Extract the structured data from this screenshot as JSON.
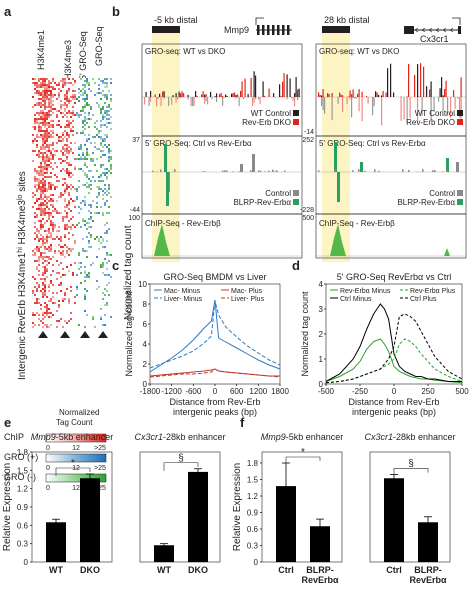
{
  "panel_letters": [
    "a",
    "b",
    "c",
    "d",
    "e",
    "f"
  ],
  "heatmap": {
    "columns": [
      "H3K4me1",
      "H3K4me3",
      "5' GRO-Seq",
      "GRO-Seq"
    ],
    "side_label": "Intergenic RevErb H3K4me1",
    "side_label_hi": "hi",
    "side_label_mid": " H3K4me3",
    "side_label_lo": "lo",
    "side_label_end": " sites",
    "scale_title": "Normalized Tag Count",
    "scale_rows": [
      {
        "name": "ChIP",
        "ticks": [
          "0",
          "12",
          ">25"
        ],
        "colors": [
          "#ffffff",
          "#f4a9a2",
          "#e2231a"
        ]
      },
      {
        "name": "GRO (+)",
        "ticks": [
          "0",
          "12",
          ">25"
        ],
        "colors": [
          "#ffffff",
          "#7fb3d8",
          "#1b6fb5"
        ]
      },
      {
        "name": "GRO (-)",
        "ticks": [
          "0",
          "12",
          ">25"
        ],
        "colors": [
          "#ffffff",
          "#8fd08f",
          "#2aa02a"
        ]
      }
    ]
  },
  "browser": {
    "ylabel": "Normalized tag count",
    "left": {
      "distal": "-5 kb distal",
      "gene": "Mmp9",
      "track1": {
        "title": "GRO-seq: WT vs DKO",
        "ymax": "",
        "ymin": "",
        "legend": [
          "WT Control",
          "Rev-Erb DKO"
        ],
        "legend_colors": [
          "#231f20",
          "#e2231a"
        ]
      },
      "track2": {
        "title": "5' GRO-Seq: Ctrl vs Rev-Erbα",
        "ymax": "37",
        "ymin": "-44",
        "legend": [
          "Control",
          "BLRP-Rev-Erbα"
        ],
        "legend_colors": [
          "#8a8a8a",
          "#2aa060"
        ]
      },
      "track3": {
        "title": "ChIP-Seq - Rev-Erbβ",
        "ymax": "100",
        "ymin": ""
      }
    },
    "right": {
      "distal": "28 kb distal",
      "gene": "Cx3cr1",
      "track1": {
        "title": "GRO-seq: WT vs DKO",
        "ymax": "",
        "ymin": "-14",
        "legend": [
          "WT Control",
          "Rev-Erb DKO"
        ],
        "legend_colors": [
          "#231f20",
          "#e2231a"
        ]
      },
      "track2": {
        "title": "5' GRO-Seq: Ctrl vs Rev-Erbα",
        "ymax": "252",
        "ymin": "-228",
        "legend": [
          "Control",
          "BLRP-Rev-Erbα"
        ],
        "legend_colors": [
          "#8a8a8a",
          "#2aa060"
        ]
      },
      "track3": {
        "title": "ChIP-Seq - Rev-Erbβ",
        "ymax": "500",
        "ymin": ""
      }
    }
  },
  "chart_data": [
    {
      "panel": "c",
      "type": "line",
      "title": "GRO-Seq BMDM vs Liver",
      "xlabel": "Distance  from    Rev-Erb\nintergenic peaks (bp)",
      "ylabel": "Normalized tag count",
      "xlim": [
        -1800,
        1800
      ],
      "ylim": [
        0,
        10
      ],
      "xticks": [
        "-1800",
        "-1200",
        "-600",
        "0",
        "600",
        "1200",
        "1800"
      ],
      "yticks": [
        "0",
        "2",
        "4",
        "6",
        "8",
        "10"
      ],
      "legend": [
        "Mac- Minus",
        "Liver- Minus",
        "Mac- Plus",
        "Liver- Plus"
      ],
      "x": [
        -1800,
        -1500,
        -1200,
        -900,
        -600,
        -300,
        -100,
        0,
        100,
        300,
        600,
        900,
        1200,
        1500,
        1800
      ],
      "series": [
        {
          "name": "Mac- Minus",
          "color": "#2b7bc0",
          "dash": "",
          "values": [
            1.2,
            1.9,
            2.6,
            3.4,
            4.4,
            5.6,
            6.3,
            8.4,
            4.6,
            4.2,
            3.6,
            3.0,
            2.4,
            1.9,
            1.5
          ]
        },
        {
          "name": "Mac- Plus",
          "color": "#2b7bc0",
          "dash": "4,2",
          "values": [
            1.6,
            2.0,
            2.4,
            2.8,
            3.3,
            4.1,
            4.8,
            8.3,
            6.9,
            5.7,
            4.7,
            3.8,
            3.1,
            2.4,
            1.9
          ]
        },
        {
          "name": "Liver- Minus",
          "color": "#c0392b",
          "dash": "",
          "values": [
            0.8,
            0.9,
            1.0,
            1.1,
            1.2,
            1.3,
            1.4,
            1.5,
            1.3,
            1.2,
            1.1,
            1.0,
            0.9,
            0.8,
            0.8
          ]
        },
        {
          "name": "Liver- Plus",
          "color": "#c0392b",
          "dash": "4,2",
          "values": [
            0.7,
            0.8,
            0.9,
            1.0,
            1.0,
            1.1,
            1.2,
            1.5,
            1.3,
            1.2,
            1.1,
            1.0,
            0.9,
            0.8,
            0.7
          ]
        }
      ]
    },
    {
      "panel": "d",
      "type": "line",
      "title": "5' GRO-Seq RevErbα vs Ctrl",
      "xlabel": "Distance  from    Rev-Erb\nintergenic peaks (bp)",
      "ylabel": "Normalized tag count",
      "xlim": [
        -500,
        500
      ],
      "ylim": [
        0,
        4
      ],
      "xticks": [
        "-500",
        "-250",
        "0",
        "250",
        "500"
      ],
      "yticks": [
        "0",
        "1",
        "2",
        "3",
        "4"
      ],
      "legend": [
        "Rev-Erbα Minus",
        "Ctrl Minus",
        "Rev-Erbα Plus",
        "Ctrl Plus"
      ],
      "x": [
        -500,
        -400,
        -300,
        -250,
        -200,
        -150,
        -100,
        -70,
        -40,
        0,
        40,
        80,
        120,
        160,
        200,
        250,
        300,
        400,
        500
      ],
      "series": [
        {
          "name": "Rev-Erbα Minus",
          "color": "#2aa02a",
          "dash": "",
          "values": [
            0.1,
            0.3,
            0.6,
            0.9,
            1.4,
            1.7,
            1.8,
            1.6,
            1.3,
            0.7,
            0.5,
            0.4,
            0.3,
            0.25,
            0.2,
            0.2,
            0.15,
            0.1,
            0.05
          ]
        },
        {
          "name": "Ctrl Minus",
          "color": "#000000",
          "dash": "",
          "values": [
            0.1,
            0.4,
            1.0,
            1.5,
            2.2,
            2.8,
            3.2,
            3.0,
            2.6,
            1.2,
            0.7,
            0.5,
            0.4,
            0.3,
            0.3,
            0.2,
            0.2,
            0.1,
            0.1
          ]
        },
        {
          "name": "Rev-Erbα Plus",
          "color": "#2aa02a",
          "dash": "3,2",
          "values": [
            0.05,
            0.1,
            0.2,
            0.3,
            0.4,
            0.5,
            0.6,
            0.7,
            0.8,
            1.0,
            1.6,
            1.8,
            1.7,
            1.5,
            1.2,
            0.9,
            0.6,
            0.3,
            0.1
          ]
        },
        {
          "name": "Ctrl Plus",
          "color": "#000000",
          "dash": "3,2",
          "values": [
            0.05,
            0.1,
            0.2,
            0.3,
            0.4,
            0.5,
            0.6,
            0.8,
            1.0,
            1.5,
            2.7,
            2.8,
            2.7,
            2.5,
            2.1,
            1.6,
            1.1,
            0.5,
            0.2
          ]
        }
      ]
    },
    {
      "panel": "e",
      "type": "bar",
      "groups": [
        {
          "title": "Mmp9-5kb enhancer",
          "title_italic": "Mmp9",
          "title_rest": "-5kb enhancer",
          "categories": [
            "WT",
            "DKO"
          ],
          "values": [
            0.65,
            1.37
          ],
          "errors": [
            0.05,
            0.07
          ],
          "ylim": [
            0,
            1.8
          ],
          "yticks": [
            "0",
            "0.3",
            "0.6",
            "0.9",
            "1.2",
            "1.5",
            "1.8"
          ],
          "sig": "*"
        },
        {
          "title": "Cx3cr1-28kb enhancer",
          "title_italic": "Cx3cr1",
          "title_rest": "-28kb enhancer",
          "categories": [
            "WT",
            "DKO"
          ],
          "values": [
            0.32,
            1.72
          ],
          "errors": [
            0.03,
            0.06
          ],
          "ylim": [
            0,
            2.1
          ],
          "yticks": [],
          "sig": "§"
        }
      ],
      "ylabel": "Relative Expression"
    },
    {
      "panel": "f",
      "type": "bar",
      "groups": [
        {
          "title": "Mmp9-5kb enhancer",
          "title_italic": "Mmp9",
          "title_rest": "-5kb enhancer",
          "categories": [
            "Ctrl",
            "BLRP-\nRevErbα"
          ],
          "values": [
            1.38,
            0.65
          ],
          "errors": [
            0.42,
            0.13
          ],
          "ylim": [
            0,
            2.0
          ],
          "yticks": [
            "0",
            "0.3",
            "0.6",
            "0.9",
            "1.2",
            "1.5",
            "1.8"
          ],
          "sig": "*"
        },
        {
          "title": "Cx3cr1-28kb enhancer",
          "title_italic": "Cx3cr1",
          "title_rest": "-28kb enhancer",
          "categories": [
            "Ctrl",
            "BLRP-\nRevErbα"
          ],
          "values": [
            1.37,
            0.65
          ],
          "errors": [
            0.06,
            0.09
          ],
          "ylim": [
            0,
            1.8
          ],
          "yticks": [],
          "sig": "§"
        }
      ],
      "ylabel": "Relative Expression"
    }
  ]
}
